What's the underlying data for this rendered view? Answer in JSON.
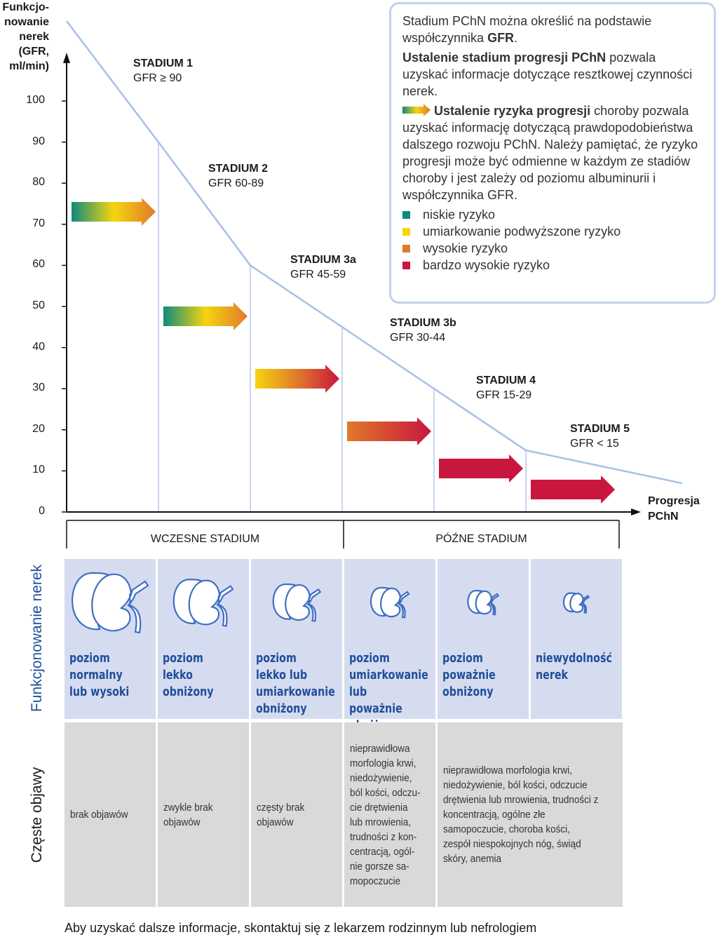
{
  "y_axis": {
    "label": [
      "Funkcjo-",
      "nowanie",
      "nerek",
      "(GFR,",
      "ml/min)"
    ],
    "ticks": [
      "100",
      "90",
      "80",
      "70",
      "60",
      "50",
      "40",
      "30",
      "20",
      "10",
      "0"
    ]
  },
  "x_axis": {
    "label": [
      "Progresja",
      "PChN"
    ]
  },
  "stages": [
    {
      "name": "STADIUM 1",
      "gfr": "GFR ≥ 90",
      "risk": [
        "#0e8a7c",
        "#f5d50f",
        "#e07a2a"
      ]
    },
    {
      "name": "STADIUM 2",
      "gfr": "GFR 60-89",
      "risk": [
        "#0e8a7c",
        "#f5d50f",
        "#e07a2a"
      ]
    },
    {
      "name": "STADIUM 3a",
      "gfr": "GFR 45-59",
      "risk": [
        "#f5d50f",
        "#e07a2a",
        "#c8163f"
      ]
    },
    {
      "name": "STADIUM 3b",
      "gfr": "GFR 30-44",
      "risk": [
        "#e07a2a",
        "#c8163f"
      ]
    },
    {
      "name": "STADIUM 4",
      "gfr": "GFR 15-29",
      "risk": [
        "#c8163f",
        "#c8163f"
      ]
    },
    {
      "name": "STADIUM 5",
      "gfr": "GFR < 15",
      "risk": [
        "#c8163f",
        "#c8163f"
      ]
    }
  ],
  "gfr_curve": [
    [
      0,
      120
    ],
    [
      1,
      90
    ],
    [
      2,
      60
    ],
    [
      3,
      45
    ],
    [
      4,
      30
    ],
    [
      5,
      15
    ],
    [
      6.7,
      7
    ]
  ],
  "periods": {
    "early": "WCZESNE STADIUM",
    "late": "PÓŹNE STADIUM"
  },
  "legend": {
    "p1": "Stadium PChN można określić na podstawie współczynnika ",
    "p1b": "GFR",
    "p2b": "Ustalenie stadium progresji PChN",
    "p2": " pozwala uzyskać informacje dotyczące resztkowej czynności nerek.",
    "p3b": "Ustalenie ryzyka progresji",
    "p3": " choroby pozwala uzyskać informację dotyczącą prawdopodobieństwa dalszego rozwoju PChN. Należy pamiętać, że ryzyko progresji może być odmienne w każdym ze stadiów choroby i jest zależy od poziomu albuminurii i współczynnika GFR.",
    "items": [
      {
        "label": "niskie ryzyko",
        "color": "#0e8a7c"
      },
      {
        "label": "umiarkowanie podwyższone ryzyko",
        "color": "#f5d50f"
      },
      {
        "label": "wysokie ryzyko",
        "color": "#e07a2a"
      },
      {
        "label": "bardzo wysokie ryzyko",
        "color": "#c8163f"
      }
    ]
  },
  "row_labels": {
    "function": "Funkcjonowanie nerek",
    "symptoms": "Częste objawy"
  },
  "function": [
    "poziom normalny lub wysoki",
    "poziom lekko obniżony",
    "poziom lekko lub umiarkowanie obniżony",
    "poziom umiarkowanie lub poważnie obniżony",
    "poziom poważnie obniżony",
    "niewydolność nerek"
  ],
  "symptoms": [
    "brak objawów",
    "zwykle brak objawów",
    "częsty brak objawów",
    "nieprawidłowa morfologia krwi, niedożywienie, ból kości, odczu-cie drętwienia lub mrowienia, trudności z kon-centracją, ogól-nie gorsze sa-mopoczucie",
    "nieprawidłowa morfologia krwi, niedożywienie, ból kości, odczucie drętwienia lub mrowienia, trudności z koncentracją, ogólne złe samopoczucie, choroba kości, zespół niespokojnych nóg, świąd skóry, anemia"
  ],
  "footer": "Aby uzyskać dalsze informacje, skontaktuj się z lekarzem rodzinnym lub nefrologiem"
}
